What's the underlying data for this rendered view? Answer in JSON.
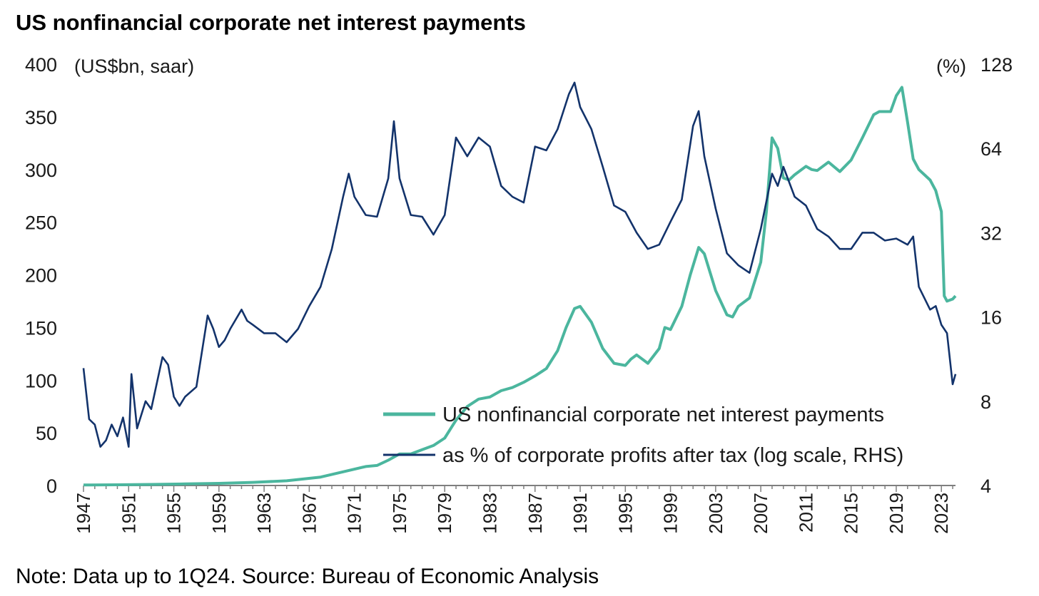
{
  "chart_data": {
    "type": "line",
    "title": "US nonfinancial corporate net interest payments",
    "note": "Note: Data up to 1Q24. Source: Bureau of Economic Analysis",
    "left_axis": {
      "unit_label": "(US$bn, saar)",
      "ylim": [
        0,
        400
      ],
      "ticks": [
        "0",
        "50",
        "100",
        "150",
        "200",
        "250",
        "300",
        "350",
        "400"
      ]
    },
    "right_axis": {
      "unit_label": "(%)",
      "scale": "log",
      "ylim": [
        4,
        128
      ],
      "ticks": [
        "4",
        "8",
        "16",
        "32",
        "64",
        "128"
      ]
    },
    "x_axis": {
      "xlim": [
        1947,
        2024.25
      ],
      "ticks": [
        "1947",
        "1951",
        "1955",
        "1959",
        "1963",
        "1967",
        "1971",
        "1975",
        "1979",
        "1983",
        "1987",
        "1991",
        "1995",
        "1999",
        "2003",
        "2007",
        "2011",
        "2015",
        "2019",
        "2023"
      ]
    },
    "grid": false,
    "legend_position": "bottom-right",
    "colors": {
      "interest": "#4bb69e",
      "share": "#13336b"
    },
    "series": [
      {
        "name": "US nonfinancial corporate net interest payments",
        "axis": "left",
        "x": [
          1947,
          1950,
          1953,
          1956,
          1959,
          1962,
          1965,
          1968,
          1970,
          1972,
          1973,
          1974,
          1975,
          1976,
          1977,
          1978,
          1979,
          1980,
          1981,
          1982,
          1983,
          1984,
          1985,
          1986,
          1987,
          1988,
          1989,
          1989.75,
          1990.5,
          1991,
          1992,
          1993,
          1994,
          1995,
          1995.5,
          1996,
          1996.5,
          1997,
          1998,
          1998.5,
          1999,
          2000,
          2000.75,
          2001.5,
          2002,
          2003,
          2004,
          2004.5,
          2005,
          2006,
          2007,
          2007.5,
          2008,
          2008.5,
          2009,
          2009.5,
          2010,
          2011,
          2011.5,
          2012,
          2013,
          2014,
          2015,
          2016,
          2017,
          2017.5,
          2018,
          2018.5,
          2019,
          2019.5,
          2020,
          2020.5,
          2021,
          2022,
          2022.5,
          2023,
          2023.25,
          2023.5,
          2024,
          2024.25
        ],
        "values": [
          0.5,
          0.7,
          1,
          1.5,
          2,
          3,
          4.5,
          8,
          13,
          18,
          19,
          24,
          30,
          30,
          34,
          38,
          45,
          62,
          75,
          82,
          84,
          90,
          93,
          98,
          104,
          111,
          128,
          150,
          168,
          170,
          155,
          130,
          116,
          114,
          120,
          124,
          120,
          116,
          130,
          150,
          148,
          170,
          200,
          226,
          220,
          185,
          162,
          160,
          170,
          178,
          212,
          260,
          330,
          320,
          292,
          290,
          295,
          303,
          300,
          299,
          307,
          298,
          309,
          330,
          352,
          355,
          355,
          355,
          370,
          378,
          345,
          310,
          300,
          290,
          280,
          260,
          180,
          175,
          177,
          180
        ]
      },
      {
        "name": "as % of corporate profits after tax (log scale, RHS)",
        "axis": "right",
        "x": [
          1947,
          1947.5,
          1948,
          1948.5,
          1949,
          1949.5,
          1950,
          1950.5,
          1951,
          1951.25,
          1951.75,
          1952.5,
          1953,
          1954,
          1954.5,
          1955,
          1955.5,
          1956,
          1957,
          1958,
          1958.5,
          1959,
          1959.5,
          1960,
          1961,
          1961.5,
          1962,
          1963,
          1964,
          1965,
          1966,
          1967,
          1968,
          1969,
          1970,
          1970.5,
          1971,
          1972,
          1973,
          1974,
          1974.5,
          1975,
          1976,
          1977,
          1978,
          1979,
          1980,
          1981,
          1982,
          1983,
          1984,
          1985,
          1986,
          1987,
          1988,
          1989,
          1990,
          1990.5,
          1991,
          1992,
          1993,
          1994,
          1995,
          1996,
          1997,
          1998,
          1999,
          2000,
          2001,
          2001.5,
          2002,
          2003,
          2004,
          2005,
          2006,
          2007,
          2008,
          2008.5,
          2009,
          2010,
          2011,
          2012,
          2013,
          2014,
          2015,
          2016,
          2017,
          2018,
          2019,
          2020,
          2020.5,
          2021,
          2022,
          2022.5,
          2023,
          2023.5,
          2024,
          2024.25
        ],
        "values": [
          10.5,
          6.9,
          6.6,
          5.5,
          5.8,
          6.6,
          6.0,
          7.0,
          5.5,
          10.0,
          6.4,
          8.0,
          7.5,
          11.5,
          10.8,
          8.3,
          7.7,
          8.3,
          9.0,
          16.2,
          14.5,
          12.5,
          13.2,
          14.5,
          17.0,
          15.5,
          15.0,
          14.0,
          14.0,
          13.0,
          14.5,
          17.5,
          20.5,
          28.0,
          43.0,
          52.0,
          43.0,
          37.0,
          36.5,
          50.0,
          80.0,
          50.0,
          37.0,
          36.5,
          31.5,
          37.0,
          70.0,
          60.0,
          70.0,
          65.0,
          47.0,
          43.0,
          41.0,
          65.0,
          63.0,
          75.0,
          100.0,
          110.0,
          90.0,
          75.0,
          55.0,
          40.0,
          38.0,
          32.0,
          28.0,
          29.0,
          35.0,
          42.0,
          77.0,
          87.0,
          60.0,
          39.0,
          27.0,
          24.5,
          23.0,
          33.0,
          52.0,
          47.0,
          55.0,
          43.0,
          40.0,
          33.0,
          31.0,
          28.0,
          28.0,
          32.0,
          32.0,
          30.0,
          30.5,
          29.0,
          31.0,
          20.5,
          17.0,
          17.5,
          15.0,
          14.0,
          9.2,
          10.0
        ]
      }
    ]
  }
}
